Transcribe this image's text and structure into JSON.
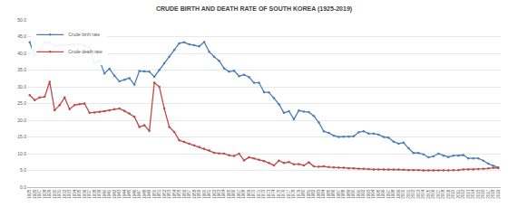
{
  "chart_data": {
    "type": "line",
    "title": "CRUDE BIRTH AND DEATH RATE OF SOUTH KOREA (1925-2019)",
    "categories": [
      "1925",
      "1926",
      "1927",
      "1928",
      "1929",
      "1930",
      "1931",
      "1932",
      "1933",
      "1934",
      "1935",
      "1936",
      "1937",
      "1938",
      "1939",
      "1940",
      "1941",
      "1942",
      "1943",
      "1944",
      "1945",
      "1946",
      "1947",
      "1948",
      "1949",
      "1950",
      "1951",
      "1952",
      "1953",
      "1954",
      "1955",
      "1956",
      "1957",
      "1958",
      "1959",
      "1960",
      "1961",
      "1962",
      "1963",
      "1964",
      "1965",
      "1966",
      "1967",
      "1968",
      "1969",
      "1970",
      "1971",
      "1972",
      "1973",
      "1974",
      "1975",
      "1976",
      "1977",
      "1978",
      "1979",
      "1980",
      "1981",
      "1982",
      "1983",
      "1984",
      "1985",
      "1986",
      "1987",
      "1988",
      "1989",
      "1990",
      "1991",
      "1992",
      "1993",
      "1994",
      "1995",
      "1996",
      "1997",
      "1998",
      "1999",
      "2000",
      "2001",
      "2002",
      "2003",
      "2004",
      "2005",
      "2006",
      "2007",
      "2008",
      "2009",
      "2010",
      "2011",
      "2012",
      "2013",
      "2014",
      "2015",
      "2016",
      "2017",
      "2018",
      "2019"
    ],
    "series": [
      {
        "name": "Crude birth rate",
        "color": "#4a7ebb",
        "marker": "circle",
        "values": [
          43.3,
          39.3,
          40.8,
          43.3,
          43.3,
          42.3,
          42.4,
          42.5,
          42.6,
          42.6,
          42.8,
          42.3,
          41.9,
          37.0,
          38.0,
          34.0,
          35.4,
          33.3,
          31.6,
          32.1,
          32.6,
          30.6,
          34.7,
          34.6,
          34.5,
          33.0,
          35.0,
          37.0,
          39.0,
          41.0,
          43.0,
          43.3,
          42.7,
          42.4,
          42.1,
          43.4,
          40.5,
          39.0,
          37.8,
          35.5,
          34.5,
          34.8,
          33.2,
          33.6,
          32.9,
          31.2,
          31.2,
          28.4,
          28.3,
          26.6,
          24.8,
          22.2,
          22.7,
          20.3,
          22.9,
          22.6,
          22.4,
          21.3,
          19.3,
          16.7,
          16.2,
          15.4,
          15.0,
          15.1,
          15.1,
          15.2,
          16.4,
          16.7,
          16.0,
          16.0,
          15.7,
          15.0,
          14.8,
          13.6,
          13.0,
          13.3,
          11.6,
          10.2,
          10.2,
          9.8,
          8.9,
          9.2,
          10.0,
          9.4,
          9.0,
          9.4,
          9.4,
          9.6,
          8.6,
          8.6,
          8.6,
          7.9,
          7.0,
          6.4,
          5.9
        ]
      },
      {
        "name": "Crude death rate",
        "color": "#be4b48",
        "marker": "circle",
        "values": [
          27.5,
          26.0,
          26.8,
          27.0,
          31.5,
          23.0,
          24.5,
          26.8,
          23.3,
          24.5,
          24.8,
          25.0,
          22.2,
          22.3,
          22.5,
          22.7,
          23.0,
          23.3,
          23.5,
          22.8,
          22.0,
          21.0,
          18.0,
          18.5,
          16.8,
          31.2,
          30.0,
          23.5,
          18.0,
          16.5,
          14.0,
          13.5,
          13.0,
          12.5,
          12.0,
          11.5,
          11.0,
          10.3,
          10.1,
          10.0,
          9.5,
          9.3,
          10.0,
          8.0,
          8.9,
          8.6,
          8.2,
          7.8,
          7.2,
          6.5,
          7.9,
          7.2,
          7.5,
          6.8,
          6.9,
          6.5,
          7.4,
          6.2,
          6.1,
          6.2,
          6.0,
          5.9,
          5.8,
          5.8,
          5.6,
          5.6,
          5.5,
          5.5,
          5.4,
          5.3,
          5.3,
          5.3,
          5.3,
          5.3,
          5.3,
          5.2,
          5.1,
          5.1,
          5.1,
          5.0,
          5.0,
          5.0,
          5.0,
          5.0,
          5.0,
          5.1,
          5.1,
          5.3,
          5.3,
          5.3,
          5.4,
          5.5,
          5.6,
          5.8,
          5.7
        ]
      }
    ],
    "ylim": [
      0,
      50
    ],
    "yticks": [
      {
        "value": 0,
        "label": "0.0"
      },
      {
        "value": 5,
        "label": "5.0"
      },
      {
        "value": 10,
        "label": "10.0"
      },
      {
        "value": 15,
        "label": "15.0"
      },
      {
        "value": 20,
        "label": "20.0"
      },
      {
        "value": 25,
        "label": "25.0"
      },
      {
        "value": 30,
        "label": "30.0"
      },
      {
        "value": 35,
        "label": "35.0"
      },
      {
        "value": 40,
        "label": "40.0"
      },
      {
        "value": 45,
        "label": "45.0"
      },
      {
        "value": 50,
        "label": "50.0"
      }
    ],
    "grid": true,
    "legend": "upper left"
  }
}
